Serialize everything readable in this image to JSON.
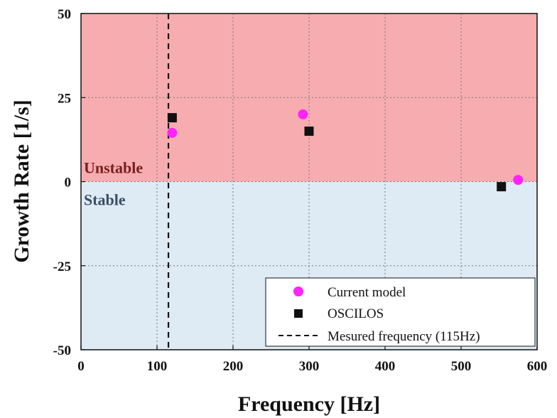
{
  "chart_data": {
    "type": "scatter",
    "xlabel": "Frequency [Hz]",
    "ylabel": "Growth Rate [1/s]",
    "xlim": [
      0,
      600
    ],
    "ylim": [
      -50,
      50
    ],
    "xticks": [
      0,
      100,
      200,
      300,
      400,
      500,
      600
    ],
    "yticks": [
      -50,
      -25,
      0,
      25,
      50
    ],
    "grid": true,
    "regions": [
      {
        "label": "Unstable",
        "y_from": 0,
        "y_to": 50,
        "color": "#f7adaf",
        "label_color": "#7a1e1e"
      },
      {
        "label": "Stable",
        "y_from": -50,
        "y_to": 0,
        "color": "#deeaf4",
        "label_color": "#3d4f61"
      }
    ],
    "series": [
      {
        "name": "Current model",
        "marker": "circle",
        "color": "#ff22ff",
        "points": [
          {
            "x": 120,
            "y": 14.5
          },
          {
            "x": 292,
            "y": 20
          },
          {
            "x": 575,
            "y": 0.5
          }
        ]
      },
      {
        "name": "OSCILOS",
        "marker": "square",
        "color": "#111111",
        "points": [
          {
            "x": 120,
            "y": 19
          },
          {
            "x": 300,
            "y": 15
          },
          {
            "x": 553,
            "y": -1.5
          }
        ]
      }
    ],
    "reference_line": {
      "name": "Mesured frequency (115Hz)",
      "x": 115,
      "style": "dashed",
      "color": "#111111"
    },
    "legend_position": "bottom-right"
  }
}
